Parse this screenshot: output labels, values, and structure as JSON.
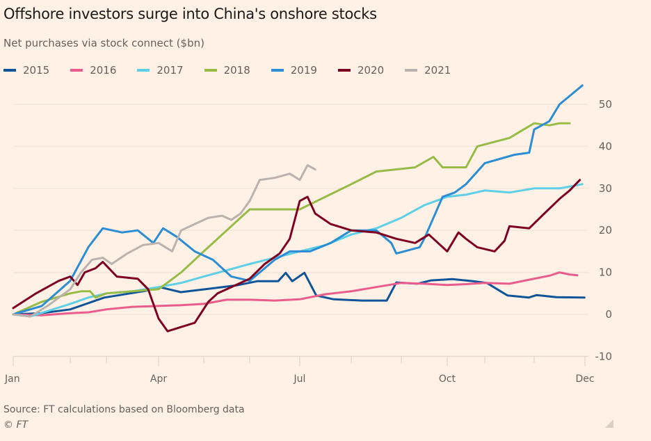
{
  "chart_data": {
    "type": "line",
    "title": "Offshore investors surge into China's onshore stocks",
    "subtitle": "Net purchases via stock connect ($bn)",
    "xlabel": "",
    "ylabel": "",
    "x_unit": "months since Jan 1",
    "xlim": [
      0,
      12
    ],
    "ylim": [
      -10,
      55
    ],
    "y_ticks": [
      -10,
      0,
      10,
      20,
      30,
      40,
      50
    ],
    "y_tick_labels": [
      "-10",
      "0",
      "10",
      "20",
      "30",
      "40",
      "50"
    ],
    "x_tick_labels": [
      {
        "month": 0,
        "label": "Jan"
      },
      {
        "month": 3,
        "label": "Apr"
      },
      {
        "month": 6,
        "label": "Jul"
      },
      {
        "month": 9,
        "label": "Oct"
      },
      {
        "month": 12,
        "label": "Dec"
      }
    ],
    "grid": true,
    "legend_position": "top",
    "series": [
      {
        "name": "2015",
        "color": "#0f5499",
        "x": [
          0,
          0.5,
          1,
          1.94,
          2.75,
          3.02,
          3.49,
          4.1,
          4.71,
          5.15,
          5.57,
          5.72,
          5.85,
          6.09,
          6.32,
          6.66,
          7.21,
          7.71,
          7.9,
          8.35,
          8.65,
          9.13,
          9.69,
          10.04,
          10.46,
          10.89,
          11.05,
          11.44,
          11.99
        ],
        "y": [
          0,
          0.3,
          1.2,
          4,
          5.6,
          6.5,
          5.3,
          6.1,
          6.9,
          7.9,
          7.9,
          9.9,
          7.9,
          9.9,
          4.5,
          3.6,
          3.3,
          3.3,
          7.6,
          7.3,
          8.1,
          8.4,
          7.9,
          7.5,
          4.5,
          4,
          4.6,
          4.1,
          4
        ]
      },
      {
        "name": "2016",
        "color": "#e95d8c",
        "x": [
          0,
          0.5,
          1,
          1.5,
          2,
          2.5,
          3,
          3.5,
          4,
          4.5,
          5,
          5.5,
          6,
          6.5,
          7,
          7.5,
          8,
          8.5,
          9,
          9.5,
          10,
          10.5,
          11,
          11.3,
          11.5,
          11.7,
          11.85
        ],
        "y": [
          0,
          -0.2,
          0.3,
          0.5,
          1.2,
          1.8,
          2,
          2.2,
          2.5,
          3.5,
          3.5,
          3.3,
          3.6,
          4.8,
          5.5,
          6.5,
          7.5,
          7.3,
          7,
          7.2,
          7.5,
          7.3,
          8.5,
          9.2,
          10,
          9.5,
          9.3
        ]
      },
      {
        "name": "2017",
        "color": "#5dcfe6",
        "x": [
          0,
          0.3,
          1,
          1.5,
          2,
          2.5,
          3,
          3.5,
          4,
          4.5,
          5,
          5.5,
          6,
          6.5,
          7,
          7.5,
          8,
          8.5,
          9,
          9.5,
          10,
          10.5,
          11,
          11.5,
          11.95
        ],
        "y": [
          0,
          -0.5,
          2.5,
          4,
          5,
          5.5,
          6.5,
          7.5,
          9,
          10.5,
          12,
          13.5,
          15,
          16.5,
          19,
          20.5,
          23,
          26,
          28,
          28.5,
          29.5,
          29,
          30,
          30,
          31
        ]
      },
      {
        "name": "2018",
        "color": "#96bc47",
        "x": [
          0,
          0.5,
          1,
          1.3,
          1.55,
          1.7,
          2,
          2.5,
          3,
          3.5,
          4,
          4.5,
          5,
          5.5,
          6,
          6.5,
          7,
          7.5,
          8.3,
          8.7,
          8.9,
          9.5,
          9.8,
          10.5,
          11,
          11.3,
          11.5,
          11.7
        ],
        "y": [
          0,
          3,
          5,
          5.5,
          5.5,
          4,
          5,
          5.5,
          6,
          10,
          15,
          20,
          25,
          25,
          25,
          28,
          31,
          34,
          35,
          37.5,
          35,
          35,
          40,
          42,
          45.5,
          45,
          45.5,
          45.5
        ]
      },
      {
        "name": "2019",
        "color": "#2b8dd4",
        "x": [
          0,
          0.5,
          1,
          1.5,
          1.9,
          2.3,
          2.6,
          2.9,
          3.1,
          3.4,
          3.8,
          4.2,
          4.6,
          5,
          5.5,
          5.8,
          6.2,
          6.6,
          7,
          7.5,
          7.8,
          7.9,
          8.4,
          8.5,
          8.9,
          9.2,
          9.5,
          10,
          10.6,
          10.9,
          11,
          11.3,
          11.5,
          11.8,
          11.95
        ],
        "y": [
          0,
          2,
          8,
          16,
          20.5,
          19.5,
          20,
          17,
          20.5,
          18.5,
          15,
          13,
          9,
          8,
          13,
          15,
          15,
          17,
          20,
          20,
          17,
          14.5,
          16,
          18,
          28,
          29,
          31,
          36,
          38,
          38.5,
          44,
          46,
          50,
          53,
          54.5
        ]
      },
      {
        "name": "2020",
        "color": "#7d0023",
        "x": [
          0,
          0.4,
          0.8,
          1,
          1.2,
          1.4,
          1.7,
          1.9,
          2.2,
          2.6,
          2.8,
          3,
          3.2,
          3.5,
          3.8,
          4.1,
          4.3,
          4.6,
          5,
          5.3,
          5.6,
          5.8,
          6,
          6.15,
          6.3,
          6.6,
          7,
          7.5,
          7.9,
          8.3,
          8.6,
          8.8,
          9,
          9.3,
          9.5,
          9.8,
          10.2,
          10.4,
          10.5,
          10.9,
          11.2,
          11.5,
          11.7,
          11.9
        ],
        "y": [
          1.5,
          5,
          8,
          9,
          7,
          10,
          11,
          12.5,
          9,
          8.5,
          6,
          -1,
          -4,
          -3,
          -2,
          3,
          5,
          6.5,
          8.5,
          12,
          14.5,
          18,
          27,
          28,
          24,
          21.5,
          20,
          19.5,
          18,
          17,
          19,
          17,
          15,
          19.5,
          18,
          16,
          15,
          17.5,
          21,
          20.5,
          24,
          27.5,
          29.5,
          32
        ]
      },
      {
        "name": "2021",
        "color": "#bab3ad",
        "x": [
          0,
          0.3,
          0.6,
          1,
          1.3,
          1.6,
          1.9,
          2.1,
          2.4,
          2.7,
          3,
          3.3,
          3.5,
          3.8,
          4.1,
          4.4,
          4.6,
          4.8,
          5,
          5.2,
          5.5,
          5.8,
          6,
          6.15,
          6.3
        ],
        "y": [
          0,
          -0.5,
          2,
          6,
          10,
          13,
          13.5,
          12,
          14.5,
          16.5,
          17,
          15,
          20,
          21.5,
          23,
          23.5,
          22.5,
          24,
          27,
          32,
          32.5,
          33.5,
          32,
          35.5,
          34.5
        ]
      }
    ]
  },
  "footer": {
    "source": "Source: FT calculations based on Bloomberg data",
    "copyright": "© FT"
  }
}
